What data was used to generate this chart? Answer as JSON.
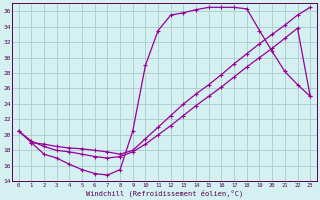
{
  "xlabel": "Windchill (Refroidissement éolien,°C)",
  "bg_color": "#d4f0f0",
  "grid_color": "#aacccc",
  "line_color": "#990099",
  "xlim": [
    -0.5,
    23.5
  ],
  "ylim": [
    14,
    37
  ],
  "xticks": [
    0,
    1,
    2,
    3,
    4,
    5,
    6,
    7,
    8,
    9,
    10,
    11,
    12,
    13,
    14,
    15,
    16,
    17,
    18,
    19,
    20,
    21,
    22,
    23
  ],
  "yticks": [
    14,
    16,
    18,
    20,
    22,
    24,
    26,
    28,
    30,
    32,
    34,
    36
  ],
  "curve1_x": [
    0,
    1,
    2,
    3,
    4,
    5,
    6,
    7,
    8,
    9,
    10,
    11,
    12,
    13,
    14,
    15,
    16,
    17,
    18,
    19,
    20,
    21,
    22,
    23
  ],
  "curve1_y": [
    20.5,
    19.0,
    17.5,
    17.0,
    16.2,
    15.5,
    15.0,
    14.8,
    15.5,
    20.5,
    29.0,
    33.5,
    35.5,
    35.8,
    36.2,
    36.5,
    36.5,
    36.5,
    36.3,
    33.5,
    30.8,
    28.2,
    26.5,
    25.0
  ],
  "curve2_x": [
    1,
    2,
    3,
    4,
    5,
    6,
    7,
    8,
    9,
    10,
    11,
    12,
    13,
    14,
    15,
    16,
    17,
    18,
    19,
    20,
    21,
    22,
    23
  ],
  "curve2_y": [
    19.0,
    18.8,
    18.5,
    18.3,
    18.2,
    18.0,
    17.8,
    17.5,
    18.0,
    19.5,
    21.0,
    22.5,
    24.0,
    25.3,
    26.5,
    27.8,
    29.2,
    30.5,
    31.8,
    33.0,
    34.2,
    35.5,
    36.5
  ],
  "curve3_x": [
    0,
    1,
    2,
    3,
    4,
    5,
    6,
    7,
    8,
    9,
    10,
    11,
    12,
    13,
    14,
    15,
    16,
    17,
    18,
    19,
    20,
    21,
    22,
    23
  ],
  "curve3_y": [
    20.5,
    19.2,
    18.5,
    18.0,
    17.8,
    17.5,
    17.2,
    17.0,
    17.2,
    17.8,
    18.8,
    20.0,
    21.2,
    22.5,
    23.8,
    25.0,
    26.2,
    27.5,
    28.8,
    30.0,
    31.2,
    32.5,
    33.8,
    25.0
  ]
}
